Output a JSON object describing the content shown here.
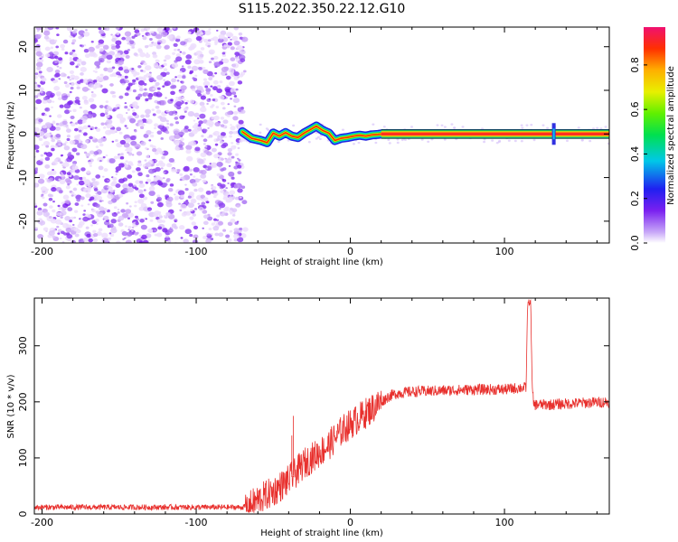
{
  "title": "S115.2022.350.22.12.G10",
  "chart_data": [
    {
      "type": "heatmap",
      "xlabel": "Height of straight line (km)",
      "ylabel": "Frequency (Hz)",
      "xlim": [
        -205,
        168
      ],
      "ylim": [
        -25,
        24.5
      ],
      "xticks": [
        -200,
        -100,
        0,
        100
      ],
      "yticks": [
        -20,
        -10,
        0,
        10,
        20
      ],
      "noise_region_x": [
        -205,
        -68
      ],
      "signal_track": {
        "x": [
          -70,
          -64,
          -58,
          -54,
          -50,
          -46,
          -42,
          -38,
          -34,
          -30,
          -26,
          -22,
          -18,
          -14,
          -10,
          -6,
          -2,
          2,
          6,
          10,
          14,
          18,
          20,
          60,
          100,
          130,
          168
        ],
        "y": [
          0.5,
          -1.0,
          -1.5,
          -2.0,
          0.2,
          -0.5,
          0.3,
          -0.5,
          -0.8,
          0.2,
          1.0,
          1.8,
          0.8,
          0.2,
          -1.5,
          -1.0,
          -0.8,
          -0.5,
          -0.3,
          -0.5,
          -0.2,
          -0.1,
          0.0,
          0.0,
          0.0,
          0.0,
          0.0
        ]
      },
      "colorbar": {
        "label": "Normalized spectral amplitude",
        "ticks": [
          "0.0",
          "0.2",
          "0.4",
          "0.6",
          "0.8"
        ],
        "range": [
          0,
          0.97
        ]
      },
      "grid": false
    },
    {
      "type": "line",
      "xlabel": "Height of straight line (km)",
      "ylabel": "SNR (10 * v/v)",
      "xlim": [
        -205,
        168
      ],
      "ylim": [
        0,
        385
      ],
      "xticks": [
        -200,
        -100,
        0,
        100
      ],
      "yticks": [
        0,
        100,
        200,
        300
      ],
      "series": [
        {
          "color": "#e8302d",
          "x": [
            -205,
            -150,
            -100,
            -70,
            -65,
            -60,
            -50,
            -45,
            -40,
            -35,
            -30,
            -25,
            -20,
            -15,
            -10,
            -5,
            0,
            5,
            10,
            15,
            20,
            25,
            30,
            40,
            60,
            80,
            100,
            110,
            114,
            115,
            117,
            118,
            119,
            130,
            150,
            168
          ],
          "y": [
            12,
            12,
            12,
            12,
            15,
            25,
            40,
            50,
            60,
            75,
            90,
            100,
            110,
            120,
            135,
            150,
            160,
            170,
            180,
            190,
            200,
            210,
            215,
            218,
            220,
            222,
            222,
            225,
            225,
            375,
            380,
            225,
            195,
            195,
            198,
            200
          ],
          "spikes": [
            {
              "x": -37,
              "y": 175
            },
            {
              "x": -38,
              "y": 140
            }
          ]
        }
      ],
      "grid": false
    }
  ]
}
